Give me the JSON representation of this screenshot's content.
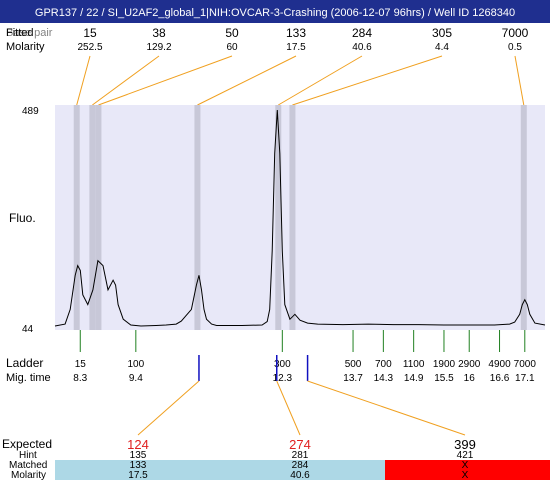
{
  "title": "GPR137 / 22 / SI_U2AF2_global_1|NIH:OVCAR-3-Crashing (2006-12-07 96hrs) / Well ID 1268340",
  "colors": {
    "title_bar": "#1f2f8f",
    "plot_bg": "#e8e8f8",
    "band": "#c8c8d8",
    "connector": "#f0a020",
    "ladder_tick": "#208020",
    "marker_tick": "#1010c0",
    "expected_highlight": "#e02020",
    "matched_ok": "#add8e6",
    "matched_bad": "#ff0000"
  },
  "top_rows": {
    "row1_label": "Fitted",
    "row1_label_overlap": "Base pair",
    "row2_label": "Molarity"
  },
  "peaks_table": [
    {
      "size": "15",
      "molarity": "252.5"
    },
    {
      "size": "38",
      "molarity": "129.2"
    },
    {
      "size": "50",
      "molarity": "60"
    },
    {
      "size": "133",
      "molarity": "17.5"
    },
    {
      "size": "284",
      "molarity": "40.6"
    },
    {
      "size": "305",
      "molarity": "4.4"
    },
    {
      "size": "7000",
      "molarity": "0.5"
    }
  ],
  "ladder_row": {
    "label1": "Ladder",
    "label2": "Mig. time",
    "items": [
      {
        "size": "15",
        "time": "8.3"
      },
      {
        "size": "100",
        "time": "9.4"
      },
      {
        "size": "300",
        "time": "12.3"
      },
      {
        "size": "500",
        "time": "13.7"
      },
      {
        "size": "700",
        "time": "14.3"
      },
      {
        "size": "1100",
        "time": "14.9"
      },
      {
        "size": "1900",
        "time": "15.5"
      },
      {
        "size": "2900",
        "time": "16"
      },
      {
        "size": "4900",
        "time": "16.6"
      },
      {
        "size": "7000",
        "time": "17.1"
      }
    ]
  },
  "bottom_table": {
    "labels": [
      "Expected",
      "Hint",
      "Matched",
      "Molarity"
    ],
    "columns": [
      {
        "expected": "124",
        "hint": "135",
        "matched": "133",
        "molarity": "17.5",
        "status": "ok"
      },
      {
        "expected": "274",
        "hint": "281",
        "matched": "284",
        "molarity": "40.6",
        "status": "ok"
      },
      {
        "expected": "399",
        "hint": "421",
        "matched": "X",
        "molarity": "X",
        "status": "bad"
      }
    ]
  },
  "chart_data": {
    "type": "line",
    "ylabel": "Fluo.",
    "yticks": [
      "489",
      "44"
    ],
    "ylim": [
      44,
      489
    ],
    "x_unit": "migration time",
    "xlim": [
      7.8,
      17.5
    ],
    "series": [
      {
        "x": [
          7.8,
          8.0,
          8.1,
          8.2,
          8.25,
          8.3,
          8.35,
          8.45,
          8.55,
          8.65,
          8.75,
          8.85,
          8.95,
          9.0,
          9.05,
          9.15,
          9.3,
          9.5,
          9.8,
          10.0,
          10.2,
          10.3,
          10.5,
          10.6,
          10.65,
          10.7,
          10.75,
          10.8,
          10.9,
          11.0,
          11.5,
          11.9,
          12.0,
          12.05,
          12.1,
          12.15,
          12.2,
          12.25,
          12.3,
          12.35,
          12.45,
          12.5,
          12.55,
          12.65,
          12.8,
          13.0,
          13.5,
          14.0,
          14.5,
          15.0,
          15.5,
          16.0,
          16.5,
          16.8,
          16.9,
          17.0,
          17.05,
          17.1,
          17.15,
          17.2,
          17.3,
          17.5
        ],
        "y": [
          46,
          50,
          80,
          150,
          170,
          160,
          110,
          90,
          120,
          180,
          170,
          120,
          140,
          130,
          90,
          60,
          48,
          46,
          47,
          48,
          50,
          56,
          80,
          130,
          150,
          120,
          80,
          60,
          50,
          47,
          47,
          48,
          55,
          80,
          200,
          400,
          489,
          400,
          200,
          90,
          60,
          65,
          70,
          58,
          52,
          50,
          49,
          50,
          49,
          49,
          48,
          48,
          48,
          50,
          54,
          70,
          90,
          100,
          90,
          70,
          52,
          48
        ]
      }
    ],
    "bands_time": [
      8.23,
      8.54,
      8.66,
      10.62,
      12.22,
      12.5,
      17.08
    ],
    "ladder_times": [
      8.3,
      9.4,
      12.3,
      13.7,
      14.3,
      14.9,
      15.5,
      16.0,
      16.6,
      17.1
    ],
    "marker_times": [
      10.65,
      12.19,
      12.8
    ],
    "grid": false
  }
}
